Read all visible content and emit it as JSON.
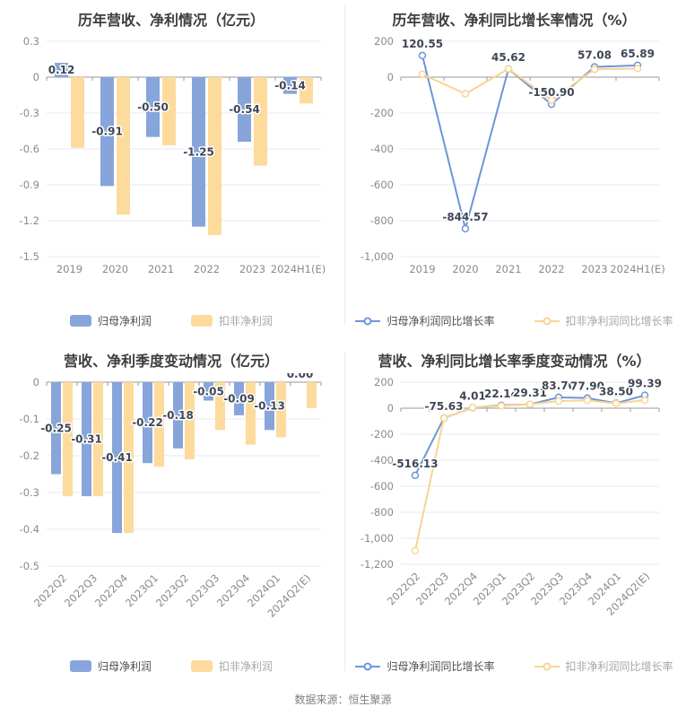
{
  "page": {
    "source_note": "数据来源：恒生聚源"
  },
  "chart_data": [
    {
      "key": "annual-net-profit",
      "type": "bar",
      "title": "历年营收、净利情况（亿元）",
      "categories": [
        "2019",
        "2020",
        "2021",
        "2022",
        "2023",
        "2024H1(E)"
      ],
      "ylim": [
        -1.5,
        0.3
      ],
      "grid": true,
      "legend_position": "bottom",
      "y_ticks": [
        {
          "v": 0.3,
          "label": "0.3"
        },
        {
          "v": 0,
          "label": "0"
        },
        {
          "v": -0.3,
          "label": "-0.3"
        },
        {
          "v": -0.6,
          "label": "-0.6"
        },
        {
          "v": -0.9,
          "label": "-0.9"
        },
        {
          "v": -1.2,
          "label": "-1.2"
        },
        {
          "v": -1.5,
          "label": "-1.5"
        }
      ],
      "series": [
        {
          "name": "归母净利润",
          "color": "#87a5db",
          "values": [
            0.12,
            -0.91,
            -0.5,
            -1.25,
            -0.54,
            -0.14
          ],
          "labels": [
            "0.12",
            "-0.91",
            "-0.50",
            "-1.25",
            "-0.54",
            "-0.14"
          ]
        },
        {
          "name": "扣非净利润",
          "color": "#fcdb9d",
          "values": [
            -0.59,
            -1.15,
            -0.57,
            -1.32,
            -0.74,
            -0.22
          ]
        }
      ]
    },
    {
      "key": "annual-growth-rate",
      "type": "line",
      "title": "历年营收、净利同比增长率情况（%）",
      "categories": [
        "2019",
        "2020",
        "2021",
        "2022",
        "2023",
        "2024H1(E)"
      ],
      "ylim": [
        -1000,
        200
      ],
      "grid": true,
      "legend_position": "bottom",
      "y_ticks": [
        {
          "v": 200,
          "label": "200"
        },
        {
          "v": 0,
          "label": "0"
        },
        {
          "v": -200,
          "label": "-200"
        },
        {
          "v": -400,
          "label": "-400"
        },
        {
          "v": -600,
          "label": "-600"
        },
        {
          "v": -800,
          "label": "-800"
        },
        {
          "v": -1000,
          "label": "-1,000"
        }
      ],
      "series": [
        {
          "name": "归母净利润同比增长率",
          "color": "#6d95d8",
          "values": [
            120.55,
            -844.57,
            45.62,
            -150.9,
            57.08,
            65.89
          ],
          "labels": [
            "120.55",
            "-844.57",
            "45.62",
            "-150.90",
            "57.08",
            "65.89"
          ]
        },
        {
          "name": "扣非净利润同比增长率",
          "color": "#f9d491",
          "values": [
            16,
            -93,
            46,
            -128,
            44,
            48
          ]
        }
      ]
    },
    {
      "key": "quarterly-net-profit",
      "type": "bar",
      "title": "营收、净利季度变动情况（亿元）",
      "categories": [
        "2022Q2",
        "2022Q3",
        "2022Q4",
        "2023Q1",
        "2023Q2",
        "2023Q3",
        "2023Q4",
        "2024Q1",
        "2024Q2(E)"
      ],
      "ylim": [
        -0.5,
        0
      ],
      "grid": true,
      "legend_position": "bottom",
      "y_ticks": [
        {
          "v": 0,
          "label": "0"
        },
        {
          "v": -0.1,
          "label": "-0.1"
        },
        {
          "v": -0.2,
          "label": "-0.2"
        },
        {
          "v": -0.3,
          "label": "-0.3"
        },
        {
          "v": -0.4,
          "label": "-0.4"
        },
        {
          "v": -0.5,
          "label": "-0.5"
        }
      ],
      "series": [
        {
          "name": "归母净利润",
          "color": "#87a5db",
          "values": [
            -0.25,
            -0.31,
            -0.41,
            -0.22,
            -0.18,
            -0.05,
            -0.09,
            -0.13,
            0
          ],
          "labels": [
            "-0.25",
            "-0.31",
            "-0.41",
            "-0.22",
            "-0.18",
            "-0.05",
            "-0.09",
            "-0.13",
            "0.00"
          ]
        },
        {
          "name": "扣非净利润",
          "color": "#fcdb9d",
          "values": [
            -0.31,
            -0.31,
            -0.41,
            -0.23,
            -0.21,
            -0.13,
            -0.17,
            -0.15,
            -0.07
          ]
        }
      ]
    },
    {
      "key": "quarterly-growth-rate",
      "type": "line",
      "title": "营收、净利同比增长率季度变动情况（%）",
      "categories": [
        "2022Q2",
        "2022Q3",
        "2022Q4",
        "2023Q1",
        "2023Q2",
        "2023Q3",
        "2023Q4",
        "2024Q1",
        "2024Q2(E)"
      ],
      "ylim": [
        -1200,
        200
      ],
      "grid": true,
      "legend_position": "bottom",
      "y_ticks": [
        {
          "v": 200,
          "label": "200"
        },
        {
          "v": 0,
          "label": "0"
        },
        {
          "v": -200,
          "label": "-200"
        },
        {
          "v": -400,
          "label": "-400"
        },
        {
          "v": -600,
          "label": "-600"
        },
        {
          "v": -800,
          "label": "-800"
        },
        {
          "v": -1000,
          "label": "-1,000"
        },
        {
          "v": -1200,
          "label": "-1,200"
        }
      ],
      "series": [
        {
          "name": "归母净利润同比增长率",
          "color": "#6d95d8",
          "values": [
            -516.13,
            -75.63,
            4.01,
            22.14,
            29.31,
            83.7,
            77.9,
            38.5,
            99.39
          ],
          "labels": [
            "-516.13",
            "-75.63",
            "4.01",
            "22.14",
            "29.31",
            "83.70",
            "77.90",
            "38.50",
            "99.39"
          ]
        },
        {
          "name": "扣非净利润同比增长率",
          "color": "#f9d491",
          "values": [
            -1095,
            -76,
            5,
            18,
            30,
            55,
            60,
            36,
            62
          ]
        }
      ]
    }
  ],
  "colors": {
    "bar_blue": "#87a5db",
    "bar_yellow": "#fcdb9d",
    "line_blue": "#6d95d8",
    "line_yellow": "#f9d491",
    "zero_axis": "#999999",
    "gridline": "#e5eaf3"
  }
}
